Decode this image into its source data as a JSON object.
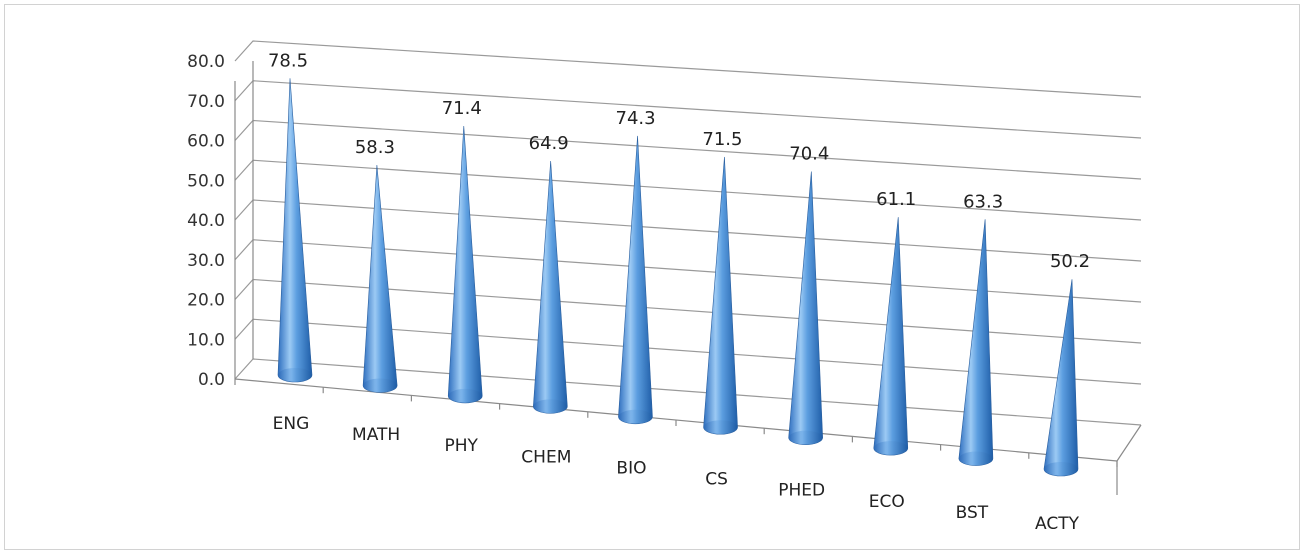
{
  "chart_data": {
    "type": "bar",
    "style": "3d-cone",
    "categories": [
      "ENG",
      "MATH",
      "PHY",
      "CHEM",
      "BIO",
      "CS",
      "PHED",
      "ECO",
      "BST",
      "ACTY"
    ],
    "values": [
      78.5,
      58.3,
      71.4,
      64.9,
      74.3,
      71.5,
      70.4,
      61.1,
      63.3,
      50.2
    ],
    "value_labels": [
      "78.5",
      "58.3",
      "71.4",
      "64.9",
      "74.3",
      "71.5",
      "70.4",
      "61.1",
      "63.3",
      "50.2"
    ],
    "y_ticks": [
      "0.0",
      "10.0",
      "20.0",
      "30.0",
      "40.0",
      "50.0",
      "60.0",
      "70.0",
      "80.0"
    ],
    "ylim": [
      0,
      80
    ],
    "grid": true,
    "legend": "none",
    "colors": {
      "cone_light": "#a9d0f5",
      "cone_mid": "#4f8fd6",
      "cone_dark": "#1f5ea8"
    }
  }
}
